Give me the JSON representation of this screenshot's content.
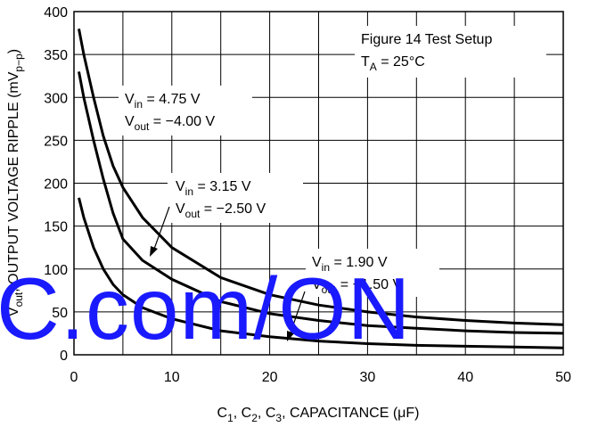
{
  "chart_data": {
    "type": "line",
    "y_label": [
      "V",
      "out",
      ", OUTPUT VOLTAGE RIPPLE (mV",
      "p−p",
      ")"
    ],
    "x_label": [
      "C",
      "1",
      ", C",
      "2",
      ", C",
      "3",
      ", CAPACITANCE (μF)"
    ],
    "x": [
      0.5,
      1,
      2,
      3,
      4,
      5,
      7,
      10,
      15,
      20,
      25,
      30,
      35,
      40,
      45,
      50
    ],
    "series": [
      {
        "color": "#000000",
        "values": [
          380,
          350,
          300,
          255,
          220,
          195,
          160,
          125,
          90,
          70,
          58,
          50,
          44,
          40,
          37,
          35
        ]
      },
      {
        "color": "#000000",
        "values": [
          330,
          300,
          250,
          205,
          165,
          135,
          110,
          88,
          62,
          48,
          40,
          34,
          31,
          28,
          26,
          25
        ]
      },
      {
        "color": "#000000",
        "values": [
          183,
          160,
          125,
          100,
          82,
          70,
          55,
          42,
          28,
          21,
          16,
          13,
          11,
          10,
          9,
          8
        ]
      }
    ],
    "annotations": [
      [
        [
          "V",
          "in",
          " = 4.75 V"
        ],
        [
          "V",
          "out",
          " = −4.00 V"
        ]
      ],
      [
        [
          "V",
          "in",
          " = 3.15 V"
        ],
        [
          "V",
          "out",
          " = −2.50 V"
        ]
      ],
      [
        [
          "V",
          "in",
          " = 1.90 V"
        ],
        [
          "V",
          "out",
          " = −1.50 V"
        ]
      ],
      [
        [
          "Figure 14 Test Setup"
        ],
        [
          "T",
          "A",
          " = 25°C"
        ]
      ]
    ],
    "watermark": "C.com/ON",
    "xlim": [
      0,
      50
    ],
    "xticks": [
      0,
      10,
      20,
      30,
      40,
      50
    ],
    "ylim": [
      0,
      400
    ],
    "yticks": [
      0,
      50,
      100,
      150,
      200,
      250,
      300,
      350,
      400
    ],
    "grid": true
  }
}
